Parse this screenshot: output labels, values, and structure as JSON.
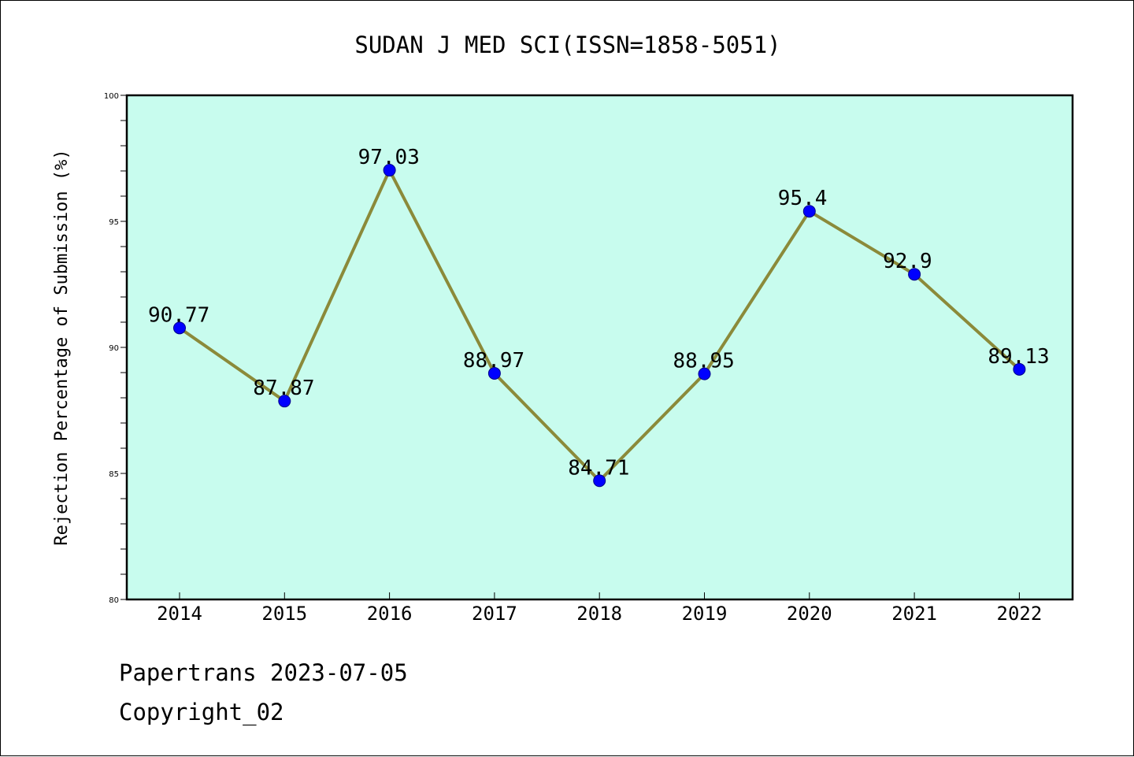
{
  "title": "SUDAN J MED SCI(ISSN=1858-5051)",
  "footer": {
    "line1": "Papertrans 2023-07-05",
    "line2": "Copyright_02"
  },
  "colors": {
    "plot_background": "#c8fcee",
    "line": "#8b8a3a",
    "marker": "#0000ff",
    "axes": "#000000"
  },
  "chart_data": {
    "type": "line",
    "title": "SUDAN J MED SCI(ISSN=1858-5051)",
    "xlabel": "",
    "ylabel": "Rejection Percentage of Submission (%)",
    "categories": [
      "2014",
      "2015",
      "2016",
      "2017",
      "2018",
      "2019",
      "2020",
      "2021",
      "2022"
    ],
    "values": [
      90.77,
      87.87,
      97.03,
      88.97,
      84.71,
      88.95,
      95.4,
      92.9,
      89.13
    ],
    "data_labels": [
      "90.77",
      "87.87",
      "97.03",
      "88.97",
      "84.71",
      "88.95",
      "95.4",
      "92.9",
      "89.13"
    ],
    "ylim": [
      80,
      100
    ],
    "yticks": [
      "80",
      "85",
      "90",
      "95",
      "100"
    ],
    "grid": false,
    "legend": "none"
  }
}
